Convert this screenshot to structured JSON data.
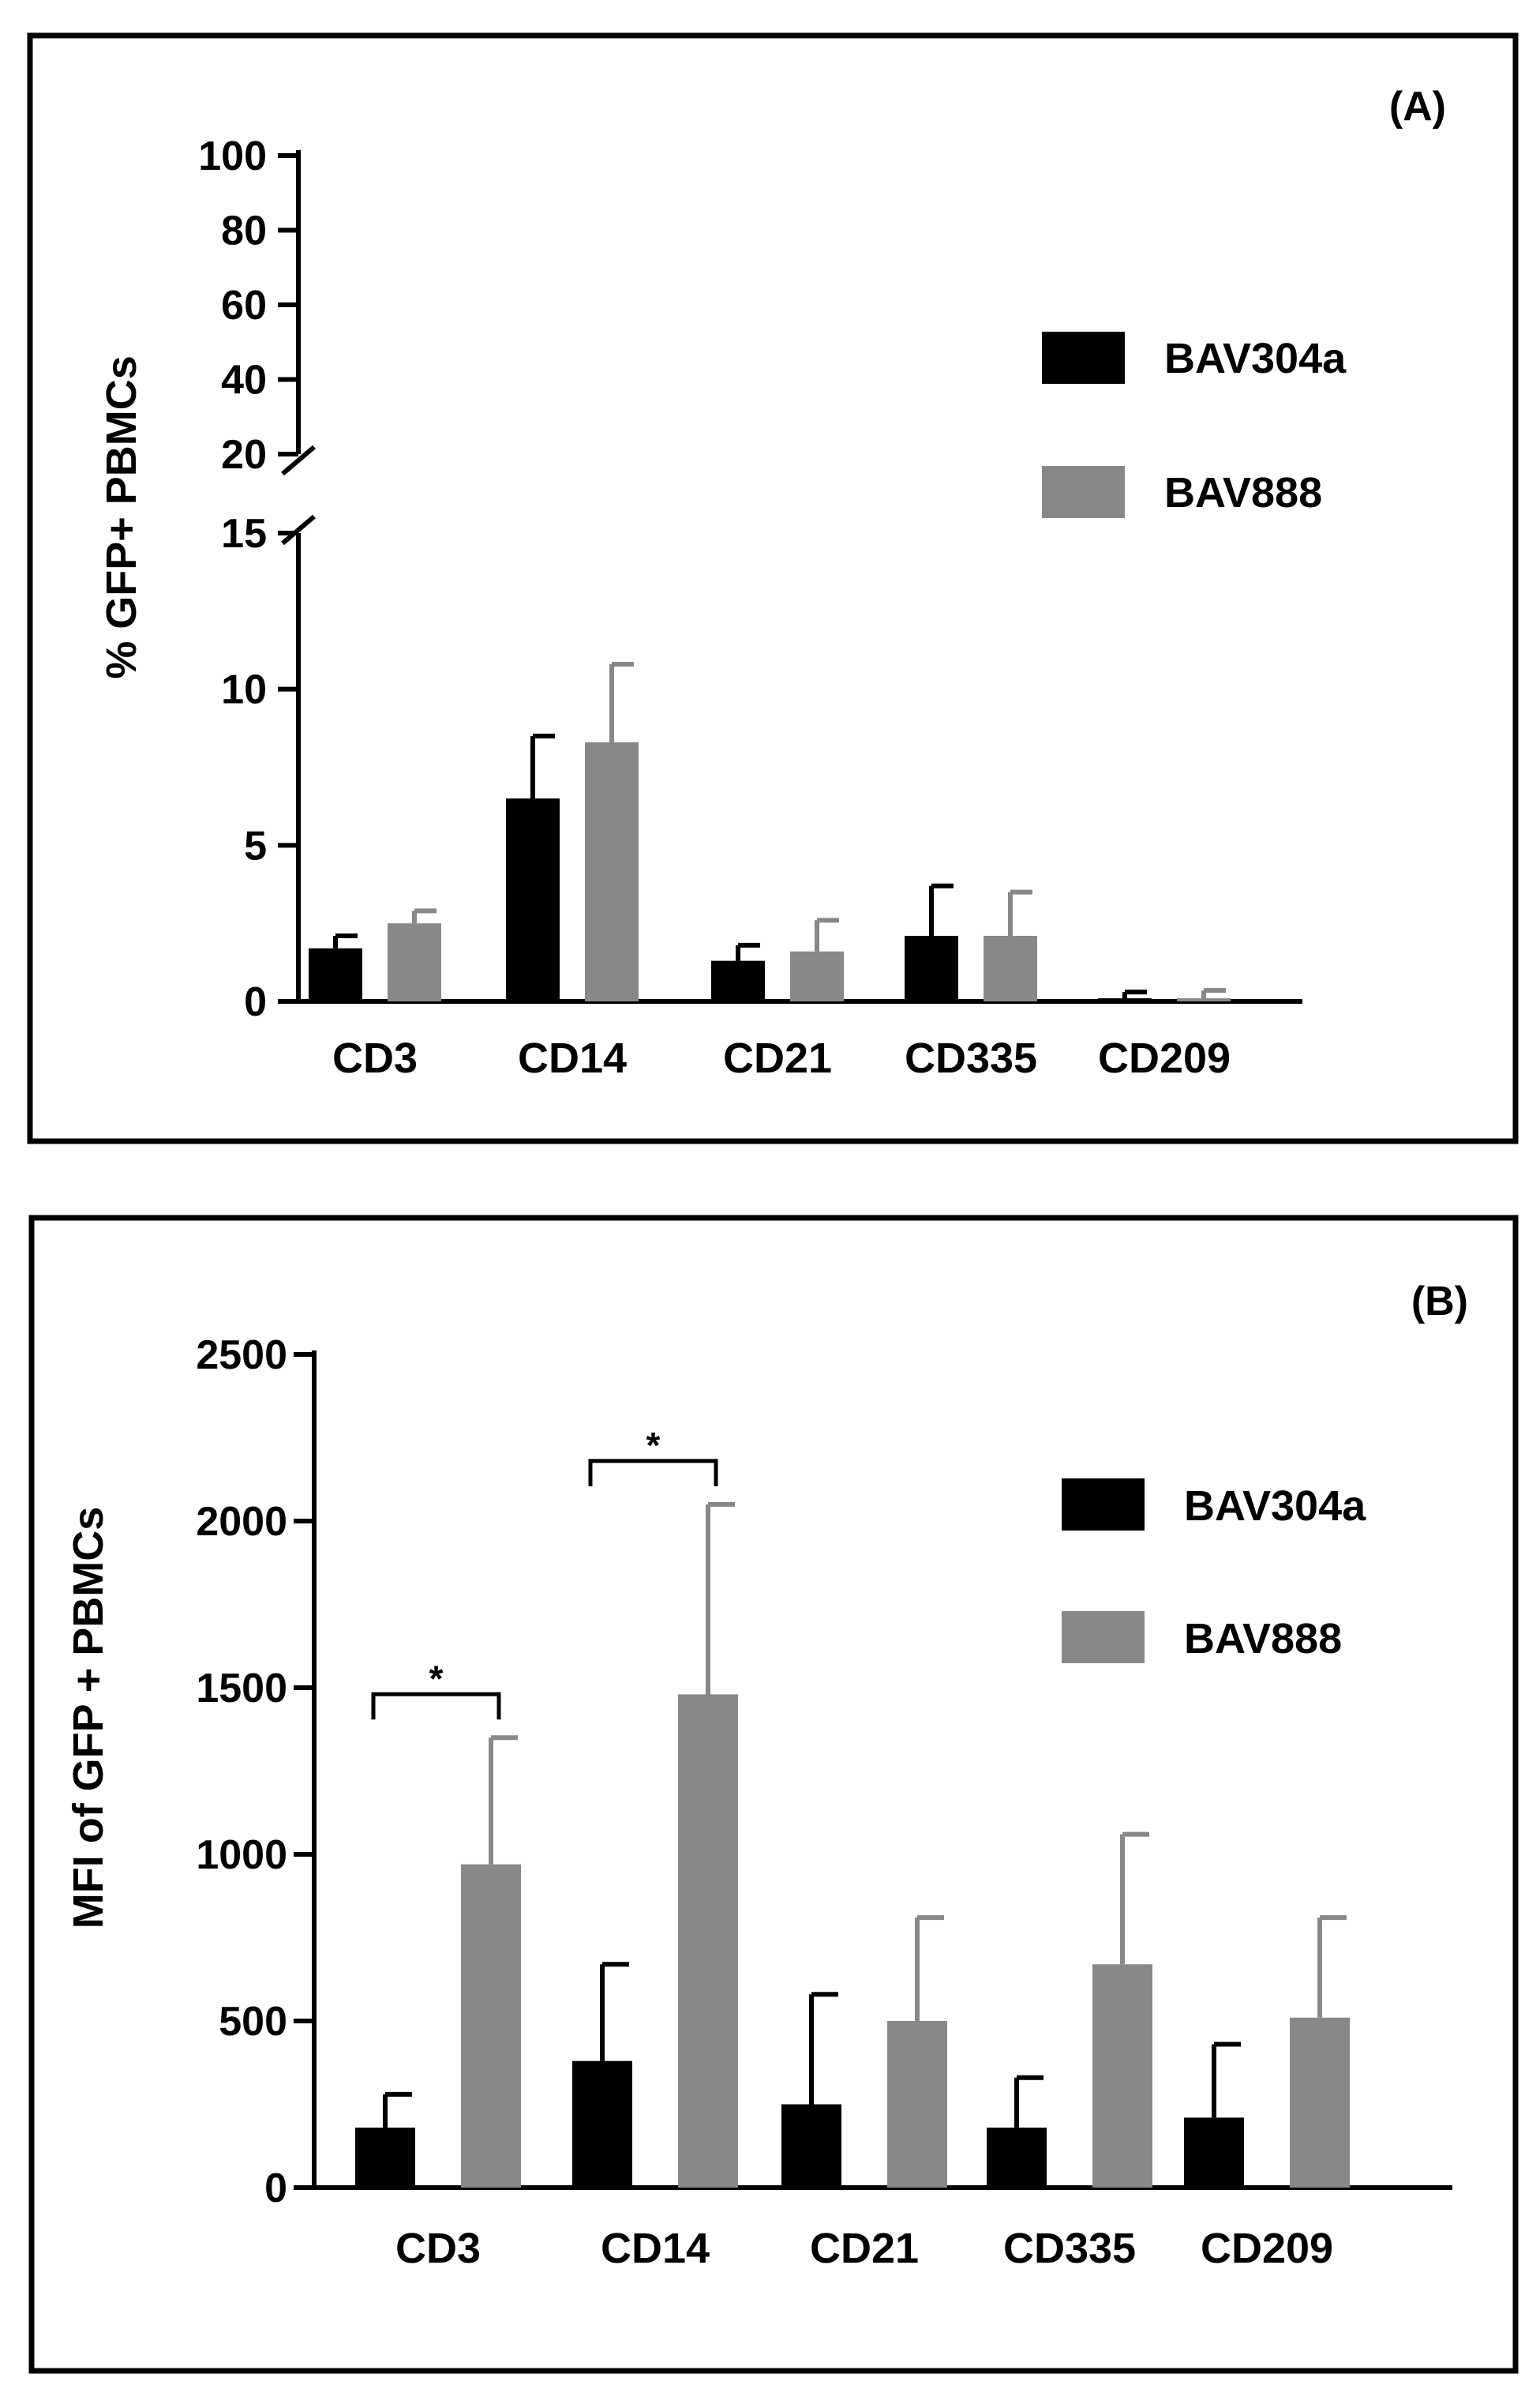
{
  "chart_data": [
    {
      "type": "bar",
      "panel_label": "(A)",
      "title": "",
      "ylabel": "% GFP+ PBMCs",
      "xlabel": "",
      "categories": [
        "CD3",
        "CD14",
        "CD21",
        "CD335",
        "CD209"
      ],
      "series": [
        {
          "name": "BAV304a",
          "color": "#000000",
          "values": [
            1.7,
            6.5,
            1.3,
            2.1,
            0.1
          ],
          "errors": [
            0.4,
            2.0,
            0.5,
            1.6,
            0.2
          ]
        },
        {
          "name": "BAV888",
          "color": "#888888",
          "values": [
            2.5,
            8.3,
            1.6,
            2.1,
            0.1
          ],
          "errors": [
            0.4,
            2.5,
            1.0,
            1.4,
            0.25
          ]
        }
      ],
      "axis_break": true,
      "ylim_lower": [
        0,
        15
      ],
      "ylim_upper": [
        20,
        100
      ],
      "yticks_lower": [
        "0",
        "5",
        "10",
        "15"
      ],
      "yticks_upper": [
        "20",
        "40",
        "60",
        "80",
        "100"
      ],
      "legend_position": "right"
    },
    {
      "type": "bar",
      "panel_label": "(B)",
      "title": "",
      "ylabel": "MFI of GFP + PBMCs",
      "xlabel": "",
      "categories": [
        "CD3",
        "CD14",
        "CD21",
        "CD335",
        "CD209"
      ],
      "series": [
        {
          "name": "BAV304a",
          "color": "#000000",
          "values": [
            180,
            380,
            250,
            180,
            210
          ],
          "errors": [
            100,
            290,
            330,
            150,
            220
          ]
        },
        {
          "name": "BAV888",
          "color": "#888888",
          "values": [
            970,
            1480,
            500,
            670,
            510
          ],
          "errors": [
            380,
            570,
            310,
            390,
            300
          ]
        }
      ],
      "ylim": [
        0,
        2500
      ],
      "yticks": [
        "0",
        "500",
        "1000",
        "1500",
        "2000",
        "2500"
      ],
      "significance": [
        {
          "category": "CD3",
          "label": "*"
        },
        {
          "category": "CD14",
          "label": "*"
        }
      ],
      "legend_position": "right"
    }
  ]
}
